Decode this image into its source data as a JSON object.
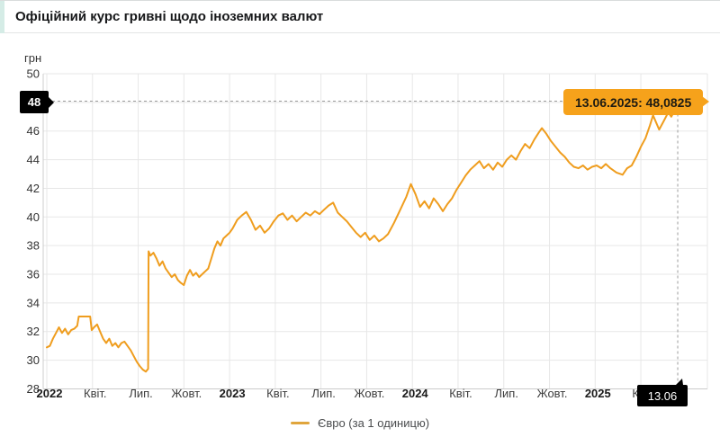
{
  "header": {
    "title": "Офіційний курс гривні щодо іноземних валют"
  },
  "chart": {
    "unit_label": "грн",
    "tooltip_text": "13.06.2025: 48,0825",
    "crosshair_y_badge": "48",
    "crosshair_x_badge": "13.06",
    "legend_label": "Євро (за 1 одиницю)",
    "colors": {
      "line": "#ef9d1e",
      "tooltip_bg": "#f6a21b",
      "badge_bg": "#000000",
      "grid": "#e7e7e7",
      "axis": "#cccccc",
      "crosshair": "#9b9b9b"
    }
  },
  "chart_data": {
    "type": "line",
    "title": "Офіційний курс гривні щодо іноземних валют",
    "ylabel": "грн",
    "ylim": [
      28,
      50
    ],
    "grid": true,
    "legend_position": "bottom",
    "y_ticks": [
      28,
      30,
      32,
      34,
      36,
      38,
      40,
      42,
      44,
      46,
      48,
      50
    ],
    "x_ticks": [
      {
        "t": 0,
        "label": "2022",
        "bold": true
      },
      {
        "t": 3,
        "label": "Квіт.",
        "bold": false
      },
      {
        "t": 6,
        "label": "Лип.",
        "bold": false
      },
      {
        "t": 9,
        "label": "Жовт.",
        "bold": false
      },
      {
        "t": 12,
        "label": "2023",
        "bold": true
      },
      {
        "t": 15,
        "label": "Квіт.",
        "bold": false
      },
      {
        "t": 18,
        "label": "Лип.",
        "bold": false
      },
      {
        "t": 21,
        "label": "Жовт.",
        "bold": false
      },
      {
        "t": 24,
        "label": "2024",
        "bold": true
      },
      {
        "t": 27,
        "label": "Квіт.",
        "bold": false
      },
      {
        "t": 30,
        "label": "Лип.",
        "bold": false
      },
      {
        "t": 33,
        "label": "Жовт.",
        "bold": false
      },
      {
        "t": 36,
        "label": "2025",
        "bold": true
      },
      {
        "t": 39,
        "label": "Квіт.",
        "bold": false
      }
    ],
    "x_unit": "months_since_2022_01",
    "last_point": {
      "date": "13.06.2025",
      "value": 48.0825
    },
    "series": [
      {
        "name": "Євро (за 1 одиницю)",
        "points": [
          [
            0,
            30.9
          ],
          [
            0.2,
            31.0
          ],
          [
            0.4,
            31.5
          ],
          [
            0.6,
            31.9
          ],
          [
            0.8,
            32.3
          ],
          [
            1.0,
            31.9
          ],
          [
            1.2,
            32.2
          ],
          [
            1.4,
            31.8
          ],
          [
            1.6,
            32.1
          ],
          [
            1.8,
            32.2
          ],
          [
            2.0,
            32.4
          ],
          [
            2.1,
            33.05
          ],
          [
            2.85,
            33.05
          ],
          [
            2.95,
            32.1
          ],
          [
            3.1,
            32.3
          ],
          [
            3.3,
            32.5
          ],
          [
            3.5,
            32.0
          ],
          [
            3.7,
            31.5
          ],
          [
            3.9,
            31.2
          ],
          [
            4.1,
            31.5
          ],
          [
            4.3,
            31.0
          ],
          [
            4.5,
            31.2
          ],
          [
            4.7,
            30.9
          ],
          [
            4.9,
            31.2
          ],
          [
            5.1,
            31.3
          ],
          [
            5.3,
            31.0
          ],
          [
            5.5,
            30.7
          ],
          [
            5.7,
            30.3
          ],
          [
            5.9,
            29.9
          ],
          [
            6.1,
            29.6
          ],
          [
            6.3,
            29.35
          ],
          [
            6.5,
            29.2
          ],
          [
            6.65,
            29.4
          ],
          [
            6.68,
            37.6
          ],
          [
            6.8,
            37.3
          ],
          [
            7.0,
            37.5
          ],
          [
            7.2,
            37.1
          ],
          [
            7.4,
            36.6
          ],
          [
            7.6,
            36.9
          ],
          [
            7.8,
            36.4
          ],
          [
            8.0,
            36.1
          ],
          [
            8.2,
            35.8
          ],
          [
            8.4,
            36.0
          ],
          [
            8.6,
            35.6
          ],
          [
            8.8,
            35.4
          ],
          [
            9.0,
            35.25
          ],
          [
            9.2,
            35.9
          ],
          [
            9.4,
            36.3
          ],
          [
            9.6,
            35.9
          ],
          [
            9.8,
            36.1
          ],
          [
            10.0,
            35.8
          ],
          [
            10.2,
            36.0
          ],
          [
            10.4,
            36.2
          ],
          [
            10.6,
            36.4
          ],
          [
            10.8,
            37.1
          ],
          [
            11.0,
            37.8
          ],
          [
            11.2,
            38.3
          ],
          [
            11.4,
            38.0
          ],
          [
            11.6,
            38.5
          ],
          [
            11.8,
            38.7
          ],
          [
            12.0,
            38.9
          ],
          [
            12.2,
            39.2
          ],
          [
            12.5,
            39.8
          ],
          [
            12.8,
            40.1
          ],
          [
            13.1,
            40.35
          ],
          [
            13.4,
            39.8
          ],
          [
            13.7,
            39.1
          ],
          [
            14.0,
            39.4
          ],
          [
            14.3,
            38.9
          ],
          [
            14.6,
            39.2
          ],
          [
            14.9,
            39.7
          ],
          [
            15.2,
            40.1
          ],
          [
            15.5,
            40.25
          ],
          [
            15.8,
            39.8
          ],
          [
            16.1,
            40.1
          ],
          [
            16.4,
            39.7
          ],
          [
            16.7,
            40.0
          ],
          [
            17.0,
            40.3
          ],
          [
            17.3,
            40.1
          ],
          [
            17.6,
            40.4
          ],
          [
            17.9,
            40.2
          ],
          [
            18.2,
            40.5
          ],
          [
            18.5,
            40.8
          ],
          [
            18.8,
            41.0
          ],
          [
            19.1,
            40.3
          ],
          [
            19.4,
            40.0
          ],
          [
            19.7,
            39.7
          ],
          [
            20.0,
            39.3
          ],
          [
            20.3,
            38.9
          ],
          [
            20.6,
            38.6
          ],
          [
            20.9,
            38.9
          ],
          [
            21.2,
            38.4
          ],
          [
            21.5,
            38.7
          ],
          [
            21.8,
            38.3
          ],
          [
            22.1,
            38.5
          ],
          [
            22.4,
            38.8
          ],
          [
            22.8,
            39.6
          ],
          [
            23.2,
            40.5
          ],
          [
            23.6,
            41.4
          ],
          [
            23.9,
            42.3
          ],
          [
            24.2,
            41.6
          ],
          [
            24.5,
            40.7
          ],
          [
            24.8,
            41.1
          ],
          [
            25.1,
            40.6
          ],
          [
            25.4,
            41.3
          ],
          [
            25.7,
            40.9
          ],
          [
            26.0,
            40.4
          ],
          [
            26.3,
            40.9
          ],
          [
            26.6,
            41.3
          ],
          [
            26.9,
            41.9
          ],
          [
            27.2,
            42.4
          ],
          [
            27.5,
            42.9
          ],
          [
            27.8,
            43.3
          ],
          [
            28.1,
            43.6
          ],
          [
            28.4,
            43.9
          ],
          [
            28.7,
            43.4
          ],
          [
            29.0,
            43.7
          ],
          [
            29.3,
            43.3
          ],
          [
            29.6,
            43.8
          ],
          [
            29.9,
            43.5
          ],
          [
            30.2,
            44.0
          ],
          [
            30.5,
            44.3
          ],
          [
            30.8,
            44.0
          ],
          [
            31.1,
            44.6
          ],
          [
            31.4,
            45.1
          ],
          [
            31.7,
            44.8
          ],
          [
            32.0,
            45.4
          ],
          [
            32.3,
            45.9
          ],
          [
            32.5,
            46.2
          ],
          [
            32.8,
            45.8
          ],
          [
            33.1,
            45.3
          ],
          [
            33.4,
            44.9
          ],
          [
            33.7,
            44.5
          ],
          [
            34.0,
            44.2
          ],
          [
            34.3,
            43.8
          ],
          [
            34.6,
            43.5
          ],
          [
            34.9,
            43.4
          ],
          [
            35.2,
            43.6
          ],
          [
            35.5,
            43.3
          ],
          [
            35.8,
            43.5
          ],
          [
            36.1,
            43.6
          ],
          [
            36.4,
            43.4
          ],
          [
            36.7,
            43.7
          ],
          [
            37.0,
            43.4
          ],
          [
            37.4,
            43.1
          ],
          [
            37.8,
            42.95
          ],
          [
            38.1,
            43.4
          ],
          [
            38.4,
            43.6
          ],
          [
            38.7,
            44.2
          ],
          [
            39.0,
            44.9
          ],
          [
            39.3,
            45.5
          ],
          [
            39.6,
            46.4
          ],
          [
            39.8,
            47.1
          ],
          [
            40.0,
            46.6
          ],
          [
            40.2,
            46.1
          ],
          [
            40.5,
            46.7
          ],
          [
            40.8,
            47.3
          ],
          [
            41.0,
            47.0
          ],
          [
            41.2,
            47.4
          ],
          [
            41.42,
            48.0825
          ]
        ]
      }
    ]
  }
}
